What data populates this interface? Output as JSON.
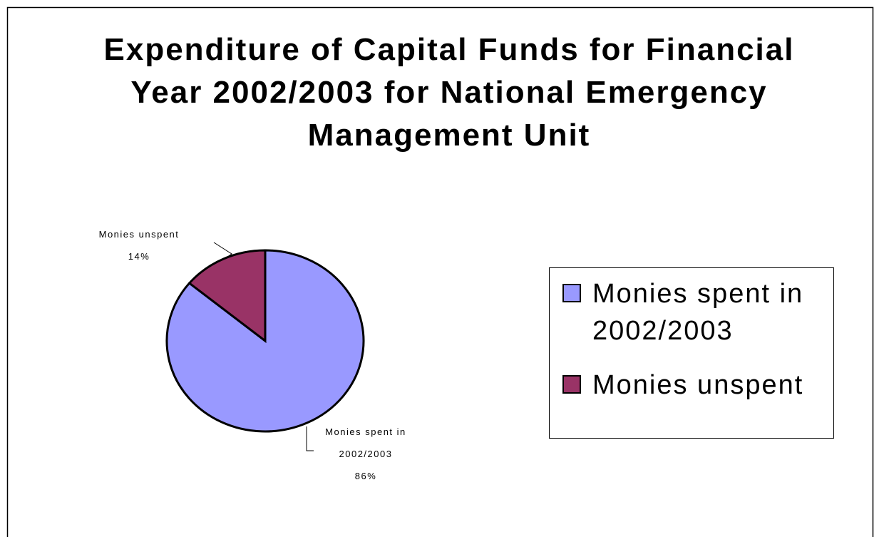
{
  "chart_data": {
    "type": "pie",
    "title": "Expenditure of Capital Funds for Financial Year 2002/2003 for National Emergency Management Unit",
    "categories": [
      "Monies spent in 2002/2003",
      "Monies unspent"
    ],
    "values": [
      86,
      14
    ],
    "value_labels": [
      "86%",
      "14%"
    ],
    "colors": [
      "#9999ff",
      "#993366"
    ],
    "legend": "right"
  }
}
